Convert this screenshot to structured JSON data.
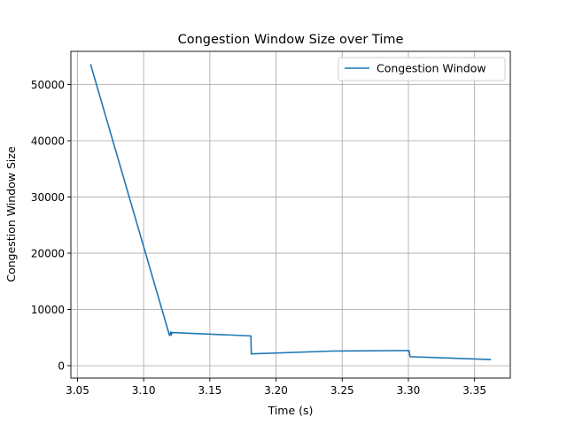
{
  "chart_data": {
    "type": "line",
    "title": "Congestion Window Size over Time",
    "xlabel": "Time (s)",
    "ylabel": "Congestion Window Size",
    "xlim": [
      3.045,
      3.377
    ],
    "ylim": [
      -2200,
      55900
    ],
    "xticks": [
      3.05,
      3.1,
      3.15,
      3.2,
      3.25,
      3.3,
      3.35
    ],
    "xtick_labels": [
      "3.05",
      "3.10",
      "3.15",
      "3.20",
      "3.25",
      "3.30",
      "3.35"
    ],
    "yticks": [
      0,
      10000,
      20000,
      30000,
      40000,
      50000
    ],
    "ytick_labels": [
      "0",
      "10000",
      "20000",
      "30000",
      "40000",
      "50000"
    ],
    "grid": true,
    "legend_position": "top-right",
    "series": [
      {
        "name": "Congestion Window",
        "color": "#1f77b4",
        "x": [
          3.06,
          3.1195,
          3.1205,
          3.1207,
          3.1215,
          3.181,
          3.1813,
          3.242,
          3.3005,
          3.3013,
          3.362
        ],
        "y": [
          53500,
          5400,
          6000,
          5400,
          5900,
          5300,
          2100,
          2600,
          2700,
          1600,
          1100
        ]
      }
    ]
  }
}
